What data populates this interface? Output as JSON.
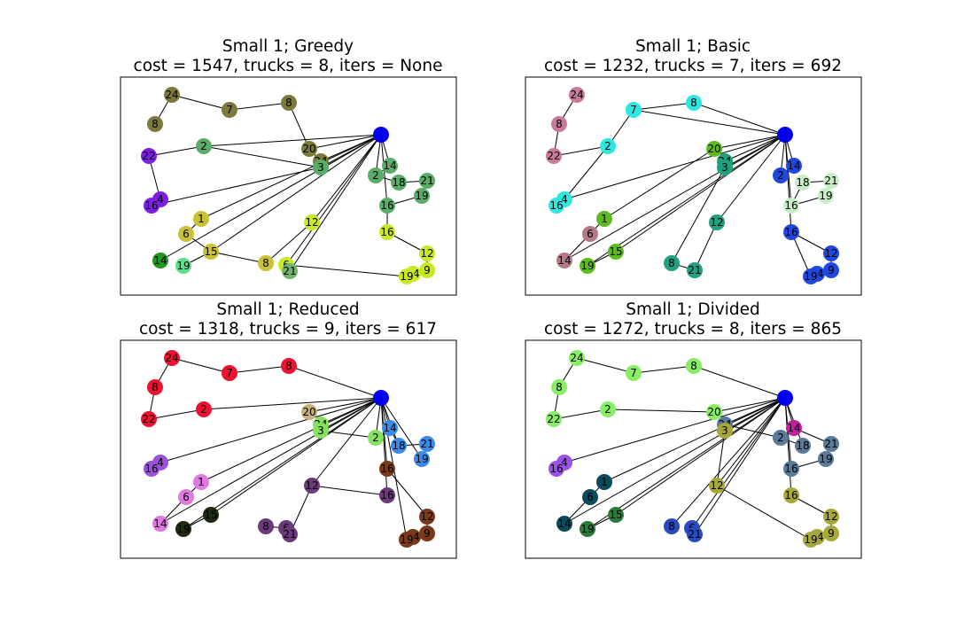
{
  "figure": {
    "panels": [
      {
        "id": "greedy",
        "title_line1": "Small 1; Greedy",
        "title_line2": "cost = 1547, trucks = 8, iters = None",
        "nodes": [
          {
            "key": "depot",
            "label": "",
            "color": "#0000ee"
          },
          {
            "key": "24",
            "label": "24",
            "color": "#7c7a3a"
          },
          {
            "key": "7",
            "label": "7",
            "color": "#7c7a3a"
          },
          {
            "key": "8a",
            "label": "8",
            "color": "#7c7a3a"
          },
          {
            "key": "8b",
            "label": "8",
            "color": "#7c7a3a"
          },
          {
            "key": "20",
            "label": "20",
            "color": "#7c7a3a"
          },
          {
            "key": "24b",
            "label": "24",
            "color": "#7c7a3a"
          },
          {
            "key": "2a",
            "label": "2",
            "color": "#5bab69"
          },
          {
            "key": "3",
            "label": "3",
            "color": "#5bab69"
          },
          {
            "key": "22",
            "label": "22",
            "color": "#7d1ee6"
          },
          {
            "key": "4",
            "label": "4",
            "color": "#7d1ee6"
          },
          {
            "key": "16a",
            "label": "16",
            "color": "#7d1ee6"
          },
          {
            "key": "2b",
            "label": "2",
            "color": "#5bab69"
          },
          {
            "key": "14a",
            "label": "14",
            "color": "#5bab69"
          },
          {
            "key": "18",
            "label": "18",
            "color": "#5bab69"
          },
          {
            "key": "21a",
            "label": "21",
            "color": "#5bab69"
          },
          {
            "key": "19a",
            "label": "19",
            "color": "#5bab69"
          },
          {
            "key": "16b",
            "label": "16",
            "color": "#5bab69"
          },
          {
            "key": "1",
            "label": "1",
            "color": "#c9c334"
          },
          {
            "key": "6a",
            "label": "6",
            "color": "#c9c334"
          },
          {
            "key": "15",
            "label": "15",
            "color": "#c9c334"
          },
          {
            "key": "8c",
            "label": "8",
            "color": "#c9c334"
          },
          {
            "key": "14b",
            "label": "14",
            "color": "#1f9a1f"
          },
          {
            "key": "19b",
            "label": "19",
            "color": "#5de08a"
          },
          {
            "key": "12a",
            "label": "12",
            "color": "#c9ea22"
          },
          {
            "key": "6b",
            "label": "6",
            "color": "#c9ea22"
          },
          {
            "key": "21b",
            "label": "21",
            "color": "#6fb56a"
          },
          {
            "key": "16c",
            "label": "16",
            "color": "#c9ea22"
          },
          {
            "key": "12b",
            "label": "12",
            "color": "#c9ea22"
          },
          {
            "key": "9",
            "label": "9",
            "color": "#c9ea22"
          },
          {
            "key": "24c",
            "label": "24",
            "color": "#c9ea22"
          },
          {
            "key": "19c",
            "label": "19",
            "color": "#c9ea22"
          }
        ]
      },
      {
        "id": "basic",
        "title_line1": "Small 1; Basic",
        "title_line2": "cost = 1232, trucks = 7, iters = 692",
        "nodes": [
          {
            "key": "depot",
            "label": "",
            "color": "#0000ee"
          },
          {
            "key": "24",
            "label": "24",
            "color": "#c97a9a"
          },
          {
            "key": "8a",
            "label": "8",
            "color": "#c97a9a"
          },
          {
            "key": "22",
            "label": "22",
            "color": "#c97a9a"
          },
          {
            "key": "7",
            "label": "7",
            "color": "#2ee8e0"
          },
          {
            "key": "8b",
            "label": "8",
            "color": "#2ee8e0"
          },
          {
            "key": "2a",
            "label": "2",
            "color": "#2ee8e0"
          },
          {
            "key": "4",
            "label": "4",
            "color": "#2ee8e0"
          },
          {
            "key": "16a",
            "label": "16",
            "color": "#2ee8e0"
          },
          {
            "key": "20",
            "label": "20",
            "color": "#5dbb1e"
          },
          {
            "key": "24b",
            "label": "24",
            "color": "#1fa07f"
          },
          {
            "key": "3",
            "label": "3",
            "color": "#1fa07f"
          },
          {
            "key": "1",
            "label": "1",
            "color": "#5dbb1e"
          },
          {
            "key": "6",
            "label": "6",
            "color": "#b17a86"
          },
          {
            "key": "14a",
            "label": "14",
            "color": "#b17a86"
          },
          {
            "key": "19a",
            "label": "19",
            "color": "#5dbb1e"
          },
          {
            "key": "15",
            "label": "15",
            "color": "#5dbb1e"
          },
          {
            "key": "12a",
            "label": "12",
            "color": "#1fa07f"
          },
          {
            "key": "8c",
            "label": "8",
            "color": "#1fa07f"
          },
          {
            "key": "21a",
            "label": "21",
            "color": "#1fa07f"
          },
          {
            "key": "2b",
            "label": "2",
            "color": "#2047e0"
          },
          {
            "key": "14b",
            "label": "14",
            "color": "#2047e0"
          },
          {
            "key": "18",
            "label": "18",
            "color": "#c8ecc6"
          },
          {
            "key": "21b",
            "label": "21",
            "color": "#c8ecc6"
          },
          {
            "key": "19b",
            "label": "19",
            "color": "#c8ecc6"
          },
          {
            "key": "16b",
            "label": "16",
            "color": "#c8ecc6"
          },
          {
            "key": "16c",
            "label": "16",
            "color": "#2047e0"
          },
          {
            "key": "12b",
            "label": "12",
            "color": "#2047e0"
          },
          {
            "key": "9",
            "label": "9",
            "color": "#2047e0"
          },
          {
            "key": "24c",
            "label": "24",
            "color": "#2047e0"
          },
          {
            "key": "19c",
            "label": "19",
            "color": "#2047e0"
          }
        ]
      },
      {
        "id": "reduced",
        "title_line1": "Small 1; Reduced",
        "title_line2": "cost = 1318, trucks = 9, iters = 617",
        "nodes": [
          {
            "key": "depot",
            "label": "",
            "color": "#0000ee"
          },
          {
            "key": "24",
            "label": "24",
            "color": "#ee1230"
          },
          {
            "key": "7",
            "label": "7",
            "color": "#ee1230"
          },
          {
            "key": "8a",
            "label": "8",
            "color": "#ee1230"
          },
          {
            "key": "8b",
            "label": "8",
            "color": "#ee1230"
          },
          {
            "key": "22",
            "label": "22",
            "color": "#ee1230"
          },
          {
            "key": "2a",
            "label": "2",
            "color": "#ee1230"
          },
          {
            "key": "20",
            "label": "20",
            "color": "#c8b07a"
          },
          {
            "key": "24b",
            "label": "24",
            "color": "#88e060"
          },
          {
            "key": "3",
            "label": "3",
            "color": "#88e060"
          },
          {
            "key": "2b",
            "label": "2",
            "color": "#88e060"
          },
          {
            "key": "4",
            "label": "4",
            "color": "#9a52d6"
          },
          {
            "key": "16a",
            "label": "16",
            "color": "#9a52d6"
          },
          {
            "key": "14a",
            "label": "14",
            "color": "#3a8be8"
          },
          {
            "key": "18",
            "label": "18",
            "color": "#3a8be8"
          },
          {
            "key": "21a",
            "label": "21",
            "color": "#3a8be8"
          },
          {
            "key": "19a",
            "label": "19",
            "color": "#3a8be8"
          },
          {
            "key": "16b",
            "label": "16",
            "color": "#7a3a1a"
          },
          {
            "key": "1",
            "label": "1",
            "color": "#e07ae0"
          },
          {
            "key": "6a",
            "label": "6",
            "color": "#e07ae0"
          },
          {
            "key": "14b",
            "label": "14",
            "color": "#e07ae0"
          },
          {
            "key": "15",
            "label": "15",
            "color": "#1e2a12"
          },
          {
            "key": "19b",
            "label": "19",
            "color": "#1e2a12"
          },
          {
            "key": "12a",
            "label": "12",
            "color": "#6a3a7a"
          },
          {
            "key": "16c",
            "label": "16",
            "color": "#6a3a7a"
          },
          {
            "key": "8c",
            "label": "8",
            "color": "#6a3a7a"
          },
          {
            "key": "6b",
            "label": "6",
            "color": "#6a3a7a"
          },
          {
            "key": "21b",
            "label": "21",
            "color": "#6a3a7a"
          },
          {
            "key": "12b",
            "label": "12",
            "color": "#7a3a1a"
          },
          {
            "key": "9",
            "label": "9",
            "color": "#7a3a1a"
          },
          {
            "key": "24c",
            "label": "24",
            "color": "#7a3a1a"
          },
          {
            "key": "19c",
            "label": "19",
            "color": "#7a3a1a"
          }
        ]
      },
      {
        "id": "divided",
        "title_line1": "Small 1; Divided",
        "title_line2": "cost = 1272, trucks = 8, iters = 865",
        "nodes": [
          {
            "key": "depot",
            "label": "",
            "color": "#0000ee"
          },
          {
            "key": "24",
            "label": "24",
            "color": "#88ee66"
          },
          {
            "key": "7",
            "label": "7",
            "color": "#88ee66"
          },
          {
            "key": "8a",
            "label": "8",
            "color": "#88ee66"
          },
          {
            "key": "8b",
            "label": "8",
            "color": "#88ee66"
          },
          {
            "key": "22",
            "label": "22",
            "color": "#88ee66"
          },
          {
            "key": "2a",
            "label": "2",
            "color": "#88ee66"
          },
          {
            "key": "20",
            "label": "20",
            "color": "#88ee66"
          },
          {
            "key": "24b",
            "label": "24",
            "color": "#5a7a9a"
          },
          {
            "key": "3",
            "label": "3",
            "color": "#a8a83a"
          },
          {
            "key": "2b",
            "label": "2",
            "color": "#5a7a9a"
          },
          {
            "key": "14a",
            "label": "14",
            "color": "#c020a0"
          },
          {
            "key": "18",
            "label": "18",
            "color": "#5a7a9a"
          },
          {
            "key": "21a",
            "label": "21",
            "color": "#5a7a9a"
          },
          {
            "key": "19a",
            "label": "19",
            "color": "#5a7a9a"
          },
          {
            "key": "16b",
            "label": "16",
            "color": "#5a7a9a"
          },
          {
            "key": "4",
            "label": "4",
            "color": "#9a52e6"
          },
          {
            "key": "16a",
            "label": "16",
            "color": "#9a52e6"
          },
          {
            "key": "1",
            "label": "1",
            "color": "#0a4a5a"
          },
          {
            "key": "6a",
            "label": "6",
            "color": "#0a4a5a"
          },
          {
            "key": "14b",
            "label": "14",
            "color": "#0a4a5a"
          },
          {
            "key": "15",
            "label": "15",
            "color": "#2a7a3a"
          },
          {
            "key": "19b",
            "label": "19",
            "color": "#2a7a3a"
          },
          {
            "key": "12a",
            "label": "12",
            "color": "#a8a83a"
          },
          {
            "key": "16c",
            "label": "16",
            "color": "#a8a83a"
          },
          {
            "key": "12b",
            "label": "12",
            "color": "#a8a83a"
          },
          {
            "key": "9",
            "label": "9",
            "color": "#a8a83a"
          },
          {
            "key": "24c",
            "label": "24",
            "color": "#a8a83a"
          },
          {
            "key": "19c",
            "label": "19",
            "color": "#a8a83a"
          },
          {
            "key": "8c",
            "label": "8",
            "color": "#2a4ac0"
          },
          {
            "key": "6b",
            "label": "6",
            "color": "#2a4ac0"
          },
          {
            "key": "21b",
            "label": "21",
            "color": "#2a4ac0"
          }
        ]
      }
    ]
  }
}
